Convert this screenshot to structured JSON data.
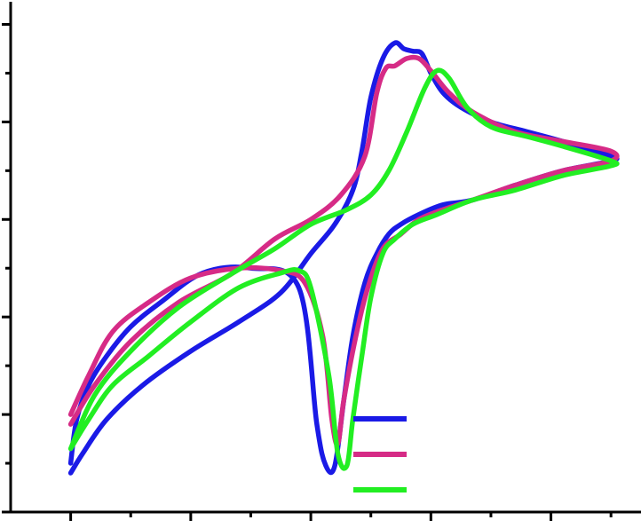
{
  "chart_data": {
    "type": "line",
    "title": "",
    "xlabel": "",
    "ylabel": "",
    "xlim": [
      0,
      10.5
    ],
    "ylim": [
      0,
      10.5
    ],
    "x_major_ticks": [
      1,
      3,
      5,
      7,
      9,
      11
    ],
    "y_major_ticks": [
      0,
      2,
      4,
      6,
      8,
      10
    ],
    "grid": false,
    "legend": {
      "position": "bottom-right",
      "entries": [
        {
          "color": "#1a1ae6",
          "label": ""
        },
        {
          "color": "#d62b86",
          "label": ""
        },
        {
          "color": "#22ee22",
          "label": ""
        }
      ]
    },
    "series": [
      {
        "color": "#1a1ae6",
        "x": [
          1.0,
          1.2,
          1.6,
          2.2,
          3.0,
          3.8,
          4.5,
          5.0,
          5.4,
          5.7,
          5.85,
          6.0,
          6.2,
          6.4,
          6.55,
          6.7,
          6.85,
          7.0,
          7.2,
          7.5,
          8.0,
          8.6,
          9.2,
          10.0,
          10.0,
          9.2,
          8.4,
          7.7,
          7.2,
          6.8,
          6.5,
          6.3,
          6.1,
          5.9,
          5.7,
          5.55,
          5.4,
          5.25,
          5.1,
          4.8,
          4.0,
          3.2,
          2.5,
          2.0,
          1.6,
          1.3,
          1.1,
          1.0
        ],
        "y": [
          0.8,
          1.2,
          1.9,
          2.6,
          3.3,
          3.9,
          4.5,
          5.3,
          5.9,
          6.6,
          7.4,
          8.5,
          9.3,
          9.62,
          9.5,
          9.45,
          9.4,
          9.0,
          8.6,
          8.3,
          8.0,
          7.8,
          7.6,
          7.3,
          7.2,
          7.0,
          6.7,
          6.4,
          6.3,
          6.1,
          5.9,
          5.7,
          5.3,
          4.7,
          3.6,
          2.3,
          0.95,
          0.95,
          1.8,
          4.6,
          5.0,
          4.9,
          4.3,
          3.8,
          3.2,
          2.6,
          1.9,
          1.0
        ]
      },
      {
        "color": "#d62b86",
        "x": [
          1.0,
          1.4,
          2.0,
          2.8,
          3.7,
          4.4,
          5.0,
          5.5,
          5.9,
          6.1,
          6.25,
          6.4,
          6.6,
          6.8,
          7.0,
          7.3,
          7.7,
          8.4,
          9.2,
          10.0,
          10.0,
          9.2,
          8.4,
          7.7,
          7.2,
          6.8,
          6.5,
          6.2,
          5.95,
          5.75,
          5.55,
          5.45,
          5.35,
          5.2,
          4.9,
          4.5,
          3.8,
          3.0,
          2.3,
          1.7,
          1.3,
          1.0
        ],
        "y": [
          1.8,
          2.6,
          3.5,
          4.3,
          4.9,
          5.6,
          6.0,
          6.5,
          7.3,
          8.6,
          9.1,
          9.15,
          9.3,
          9.3,
          9.05,
          8.6,
          8.2,
          7.8,
          7.6,
          7.4,
          7.2,
          7.0,
          6.7,
          6.4,
          6.2,
          6.0,
          5.7,
          5.4,
          4.6,
          3.6,
          2.3,
          1.4,
          1.9,
          3.6,
          4.7,
          4.95,
          5.0,
          4.8,
          4.3,
          3.7,
          2.8,
          2.0
        ]
      },
      {
        "color": "#22ee22",
        "x": [
          1.0,
          1.4,
          2.0,
          2.8,
          3.7,
          4.4,
          5.0,
          5.6,
          6.0,
          6.3,
          6.6,
          6.9,
          7.1,
          7.3,
          7.6,
          8.0,
          8.6,
          9.2,
          10.0,
          10.0,
          9.2,
          8.4,
          7.7,
          7.1,
          6.7,
          6.4,
          6.2,
          6.0,
          5.85,
          5.7,
          5.6,
          5.45,
          5.3,
          5.0,
          4.8,
          4.5,
          3.8,
          3.0,
          2.3,
          1.7,
          1.3,
          1.0
        ],
        "y": [
          1.3,
          2.4,
          3.3,
          4.2,
          4.9,
          5.4,
          5.9,
          6.2,
          6.5,
          7.0,
          7.8,
          8.7,
          9.05,
          8.9,
          8.3,
          7.9,
          7.7,
          7.5,
          7.2,
          7.1,
          6.9,
          6.6,
          6.4,
          6.1,
          5.9,
          5.6,
          5.3,
          4.4,
          3.2,
          1.9,
          0.95,
          1.2,
          2.8,
          4.6,
          4.95,
          4.9,
          4.6,
          3.9,
          3.2,
          2.6,
          1.9,
          1.3
        ]
      }
    ]
  }
}
